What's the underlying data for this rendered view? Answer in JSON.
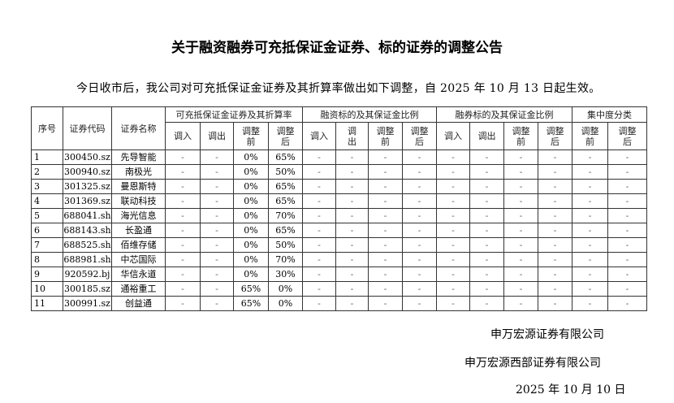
{
  "title": "关于融资融券可充抵保证金证券、标的证券的调整公告",
  "intro": "今日收市后，我公司对可充抵保证金证券及其折算率做出如下调整，自 2025 年 10 月 13 日起生效。",
  "table": {
    "headers": {
      "seq": "序号",
      "code": "证券代码",
      "name": "证券名称",
      "groups": [
        "可充抵保证金证券及其折算率",
        "融资标的及其保证金比例",
        "融券标的及其保证金比例",
        "集中度分类"
      ],
      "in": "调入",
      "out": "调出",
      "before": "调整前",
      "after": "调整后"
    },
    "rows": [
      [
        "1",
        "300450.sz",
        "先导智能",
        "-",
        "-",
        "0%",
        "65%",
        "-",
        "-",
        "-",
        "-",
        "-",
        "-",
        "-",
        "-",
        "-",
        "-"
      ],
      [
        "2",
        "300940.sz",
        "南极光",
        "-",
        "-",
        "0%",
        "50%",
        "-",
        "-",
        "-",
        "-",
        "-",
        "-",
        "-",
        "-",
        "-",
        "-"
      ],
      [
        "3",
        "301325.sz",
        "曼恩斯特",
        "-",
        "-",
        "0%",
        "65%",
        "-",
        "-",
        "-",
        "-",
        "-",
        "-",
        "-",
        "-",
        "-",
        "-"
      ],
      [
        "4",
        "301369.sz",
        "联动科技",
        "-",
        "-",
        "0%",
        "65%",
        "-",
        "-",
        "-",
        "-",
        "-",
        "-",
        "-",
        "-",
        "-",
        "-"
      ],
      [
        "5",
        "688041.sh",
        "海光信息",
        "-",
        "-",
        "0%",
        "70%",
        "-",
        "-",
        "-",
        "-",
        "-",
        "-",
        "-",
        "-",
        "-",
        "-"
      ],
      [
        "6",
        "688143.sh",
        "长盈通",
        "-",
        "-",
        "0%",
        "65%",
        "-",
        "-",
        "-",
        "-",
        "-",
        "-",
        "-",
        "-",
        "-",
        "-"
      ],
      [
        "7",
        "688525.sh",
        "佰维存储",
        "-",
        "-",
        "0%",
        "50%",
        "-",
        "-",
        "-",
        "-",
        "-",
        "-",
        "-",
        "-",
        "-",
        "-"
      ],
      [
        "8",
        "688981.sh",
        "中芯国际",
        "-",
        "-",
        "0%",
        "70%",
        "-",
        "-",
        "-",
        "-",
        "-",
        "-",
        "-",
        "-",
        "-",
        "-"
      ],
      [
        "9",
        "920592.bj",
        "华信永道",
        "-",
        "-",
        "0%",
        "30%",
        "-",
        "-",
        "-",
        "-",
        "-",
        "-",
        "-",
        "-",
        "-",
        "-"
      ],
      [
        "10",
        "300185.sz",
        "通裕重工",
        "-",
        "-",
        "65%",
        "0%",
        "-",
        "-",
        "-",
        "-",
        "-",
        "-",
        "-",
        "-",
        "-",
        "-"
      ],
      [
        "11",
        "300991.sz",
        "创益通",
        "-",
        "-",
        "65%",
        "0%",
        "-",
        "-",
        "-",
        "-",
        "-",
        "-",
        "-",
        "-",
        "-",
        "-"
      ]
    ]
  },
  "signature": {
    "company1": "申万宏源证券有限公司",
    "company2": "申万宏源西部证券有限公司",
    "date": "2025 年 10 月 10 日"
  }
}
